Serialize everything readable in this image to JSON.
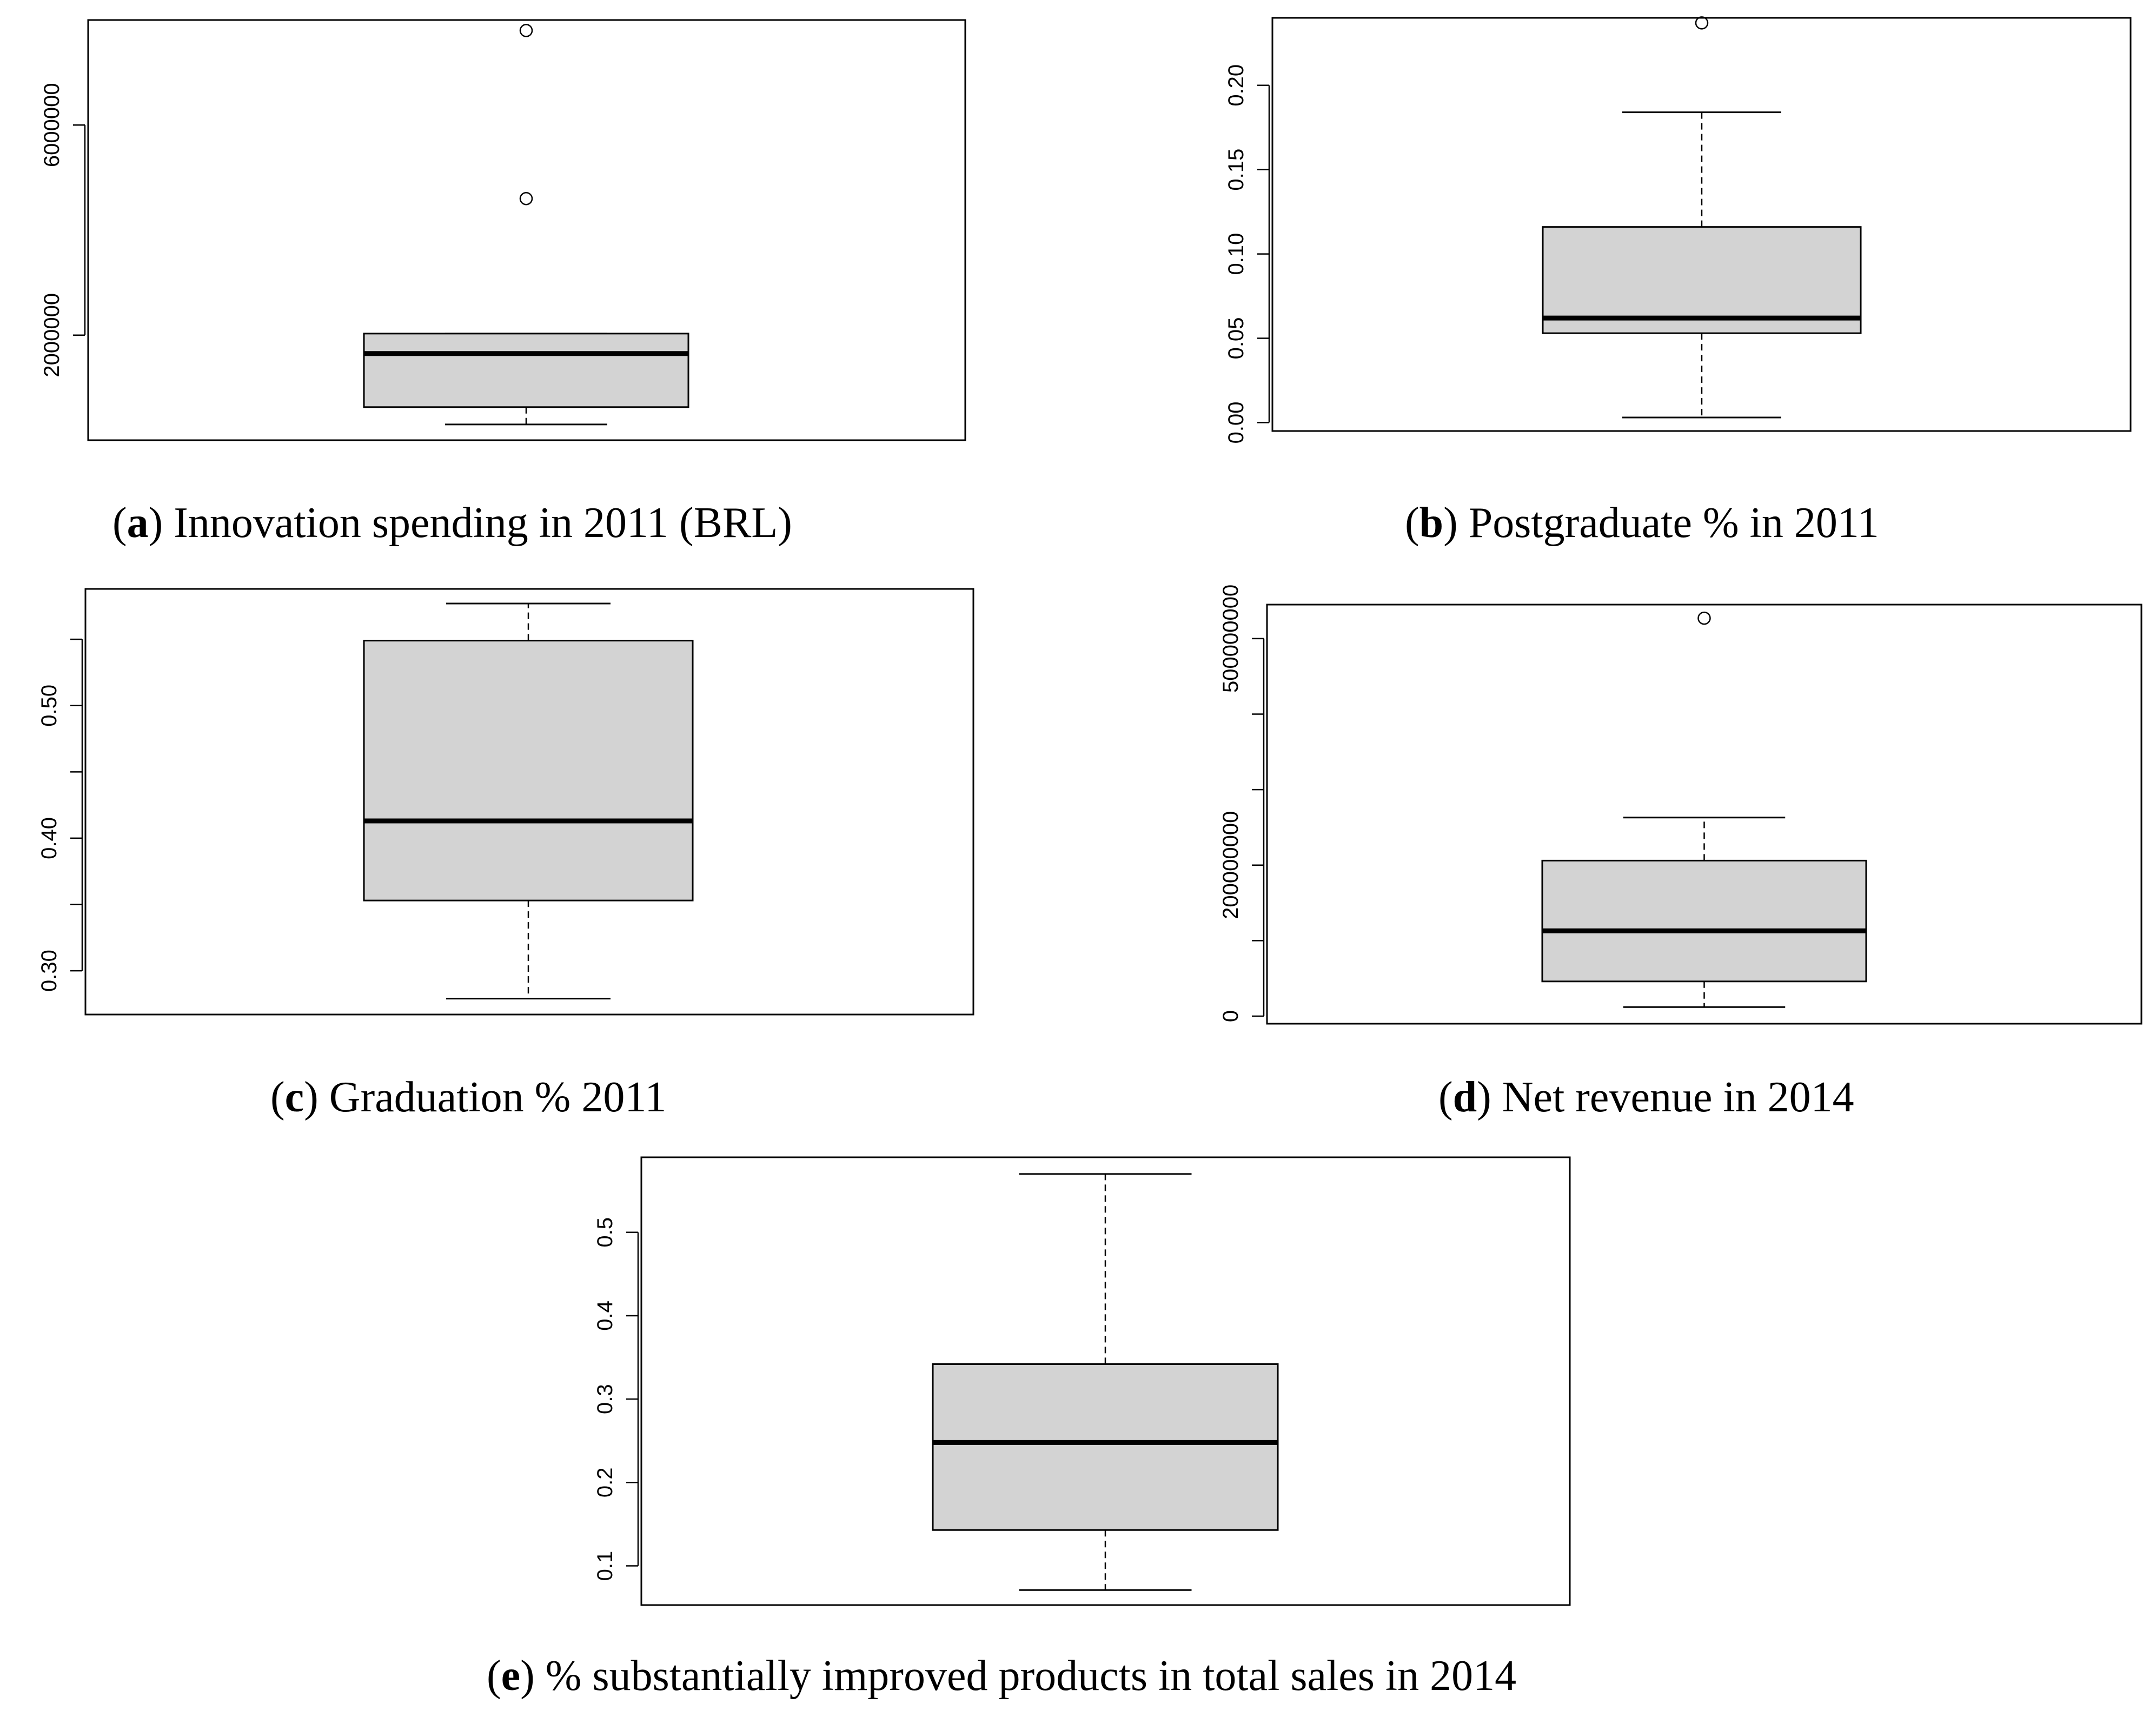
{
  "chart_data": [
    {
      "id": "a",
      "type": "boxplot",
      "caption_letter": "a",
      "caption": "Innovation spending in 2011 (BRL)",
      "ylim": [
        0,
        8000000
      ],
      "yticks": [
        2000000,
        6000000
      ],
      "ytick_labels": [
        "2000000",
        "6000000"
      ],
      "stats": {
        "min": 300000,
        "q1": 630000,
        "median": 1650000,
        "q3": 2030000,
        "max": 2030000
      },
      "outliers": [
        4600000,
        7800000
      ]
    },
    {
      "id": "b",
      "type": "boxplot",
      "caption_letter": "b",
      "caption": "Postgraduate % in 2011",
      "ylim": [
        -0.005,
        0.24
      ],
      "yticks": [
        0,
        0.05,
        0.1,
        0.15,
        0.2
      ],
      "ytick_labels": [
        "0.00",
        "0.05",
        "0.10",
        "0.15",
        "0.20"
      ],
      "stats": {
        "min": 0.003,
        "q1": 0.053,
        "median": 0.062,
        "q3": 0.116,
        "max": 0.184
      },
      "outliers": [
        0.237
      ]
    },
    {
      "id": "c",
      "type": "boxplot",
      "caption_letter": "c",
      "caption": "Graduation % 2011",
      "ylim": [
        0.267,
        0.588
      ],
      "yticks": [
        0.3,
        0.35,
        0.4,
        0.45,
        0.5,
        0.55
      ],
      "ytick_labels": [
        "0.30",
        "",
        "0.40",
        "",
        "0.50",
        ""
      ],
      "stats": {
        "min": 0.279,
        "q1": 0.353,
        "median": 0.413,
        "q3": 0.549,
        "max": 0.577
      },
      "outliers": []
    },
    {
      "id": "d",
      "type": "boxplot",
      "caption_letter": "d",
      "caption": "Net revenue in 2014",
      "ylim": [
        -10000000,
        545000000
      ],
      "yticks": [
        0,
        100000000,
        200000000,
        300000000,
        400000000,
        500000000
      ],
      "ytick_labels": [
        "0",
        "",
        "200000000",
        "",
        "",
        "500000000"
      ],
      "stats": {
        "min": 12000000,
        "q1": 46000000,
        "median": 113000000,
        "q3": 206000000,
        "max": 263000000
      },
      "outliers": [
        527000000
      ]
    },
    {
      "id": "e",
      "type": "boxplot",
      "caption_letter": "e",
      "caption": "% substantially improved products in total sales in 2014",
      "ylim": [
        0.053,
        0.59
      ],
      "yticks": [
        0.1,
        0.2,
        0.3,
        0.4,
        0.5
      ],
      "ytick_labels": [
        "0.1",
        "0.2",
        "0.3",
        "0.4",
        "0.5"
      ],
      "stats": {
        "min": 0.071,
        "q1": 0.143,
        "median": 0.248,
        "q3": 0.342,
        "max": 0.57
      },
      "outliers": []
    }
  ],
  "colors": {
    "box_fill": "#d3d3d3",
    "stroke": "#000000",
    "background": "#ffffff"
  }
}
